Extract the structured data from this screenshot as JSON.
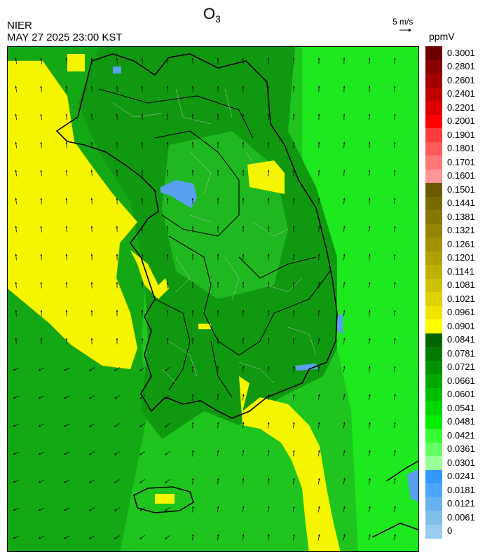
{
  "title": {
    "species": "O",
    "subscript": "3"
  },
  "agency": "NIER",
  "timestamp": "MAY 27 2025 23:00 KST",
  "wind_reference": {
    "label": "5 m/s"
  },
  "legend": {
    "unit": "ppmV",
    "labels": [
      "0.3001",
      "0.2801",
      "0.2601",
      "0.2401",
      "0.2201",
      "0.2001",
      "0.1901",
      "0.1801",
      "0.1701",
      "0.1601",
      "0.1501",
      "0.1441",
      "0.1381",
      "0.1321",
      "0.1261",
      "0.1201",
      "0.1141",
      "0.1081",
      "0.1021",
      "0.0961",
      "0.0901",
      "0.0841",
      "0.0781",
      "0.0721",
      "0.0661",
      "0.0601",
      "0.0541",
      "0.0481",
      "0.0421",
      "0.0361",
      "0.0301",
      "0.0241",
      "0.0181",
      "0.0121",
      "0.0061",
      "0"
    ],
    "colors": [
      "#6e0000",
      "#8a0000",
      "#a50000",
      "#c00000",
      "#dc0000",
      "#ff0000",
      "#ff3c3c",
      "#ff5a5a",
      "#ff7878",
      "#ff9696",
      "#6b5a00",
      "#786a00",
      "#857700",
      "#948400",
      "#a29200",
      "#b0a000",
      "#bfb000",
      "#cfc100",
      "#e0d200",
      "#efe300",
      "#ffff00",
      "#006400",
      "#007a00",
      "#009100",
      "#00a800",
      "#00bf00",
      "#00d600",
      "#00ee00",
      "#33ff33",
      "#66ff66",
      "#99ff99",
      "#3399ff",
      "#4da6ff",
      "#66b2f0",
      "#80bfe8",
      "#99ccee"
    ]
  },
  "map": {
    "base_color": "#1fc41f",
    "wind_direction": "north-northwest"
  }
}
